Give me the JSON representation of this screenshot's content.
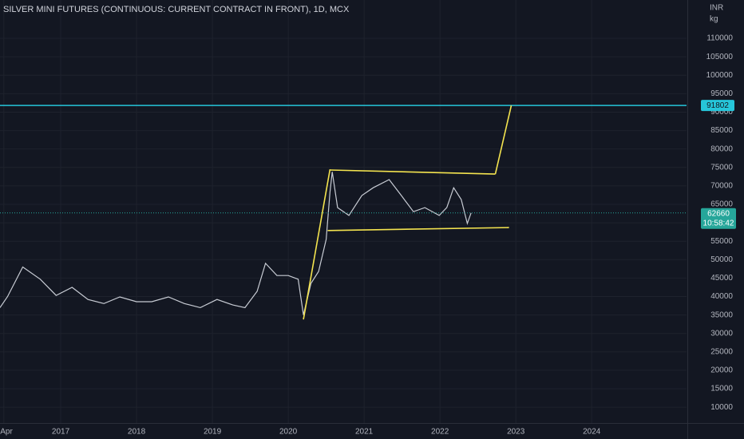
{
  "chart_data": {
    "type": "line",
    "title": "SILVER MINI FUTURES (CONTINUOUS: CURRENT CONTRACT IN FRONT), 1D, MCX",
    "currency": "INR",
    "unit": "kg",
    "x": [
      2016.2,
      2016.3,
      2016.5,
      2016.73,
      2016.94,
      2017.15,
      2017.36,
      2017.57,
      2017.78,
      2018.0,
      2018.2,
      2018.42,
      2018.63,
      2018.84,
      2019.06,
      2019.27,
      2019.43,
      2019.59,
      2019.7,
      2019.85,
      2020.0,
      2020.13,
      2020.2,
      2020.3,
      2020.4,
      2020.5,
      2020.55,
      2020.58,
      2020.65,
      2020.8,
      2020.97,
      2021.12,
      2021.33,
      2021.49,
      2021.65,
      2021.8,
      2021.99,
      2022.09,
      2022.18,
      2022.28,
      2022.36,
      2022.41
    ],
    "series": [
      {
        "name": "SILVER MINI",
        "color": "#c8ccd4",
        "values": [
          37000,
          40000,
          48000,
          44700,
          40300,
          42500,
          39200,
          38100,
          39900,
          38600,
          38600,
          39900,
          38100,
          37000,
          39200,
          37700,
          37000,
          41400,
          49000,
          45700,
          45700,
          44700,
          35000,
          43600,
          46800,
          55500,
          68400,
          73800,
          64100,
          62000,
          67400,
          69500,
          71700,
          67400,
          63000,
          64100,
          62000,
          64100,
          69500,
          66300,
          59800,
          62660
        ]
      }
    ],
    "xlim": [
      2016.2,
      2025.25
    ],
    "xticks": [
      {
        "value": 2016.25,
        "label": "Apr"
      },
      2017,
      2018,
      2019,
      2020,
      2021,
      2022,
      2023,
      2024
    ],
    "ylim": [
      5700,
      120400
    ],
    "yticks": [
      10000,
      15000,
      20000,
      25000,
      30000,
      35000,
      40000,
      45000,
      50000,
      55000,
      60000,
      65000,
      70000,
      75000,
      80000,
      85000,
      90000,
      95000,
      100000,
      105000,
      110000
    ],
    "grid": true,
    "hline": {
      "value": 91802,
      "color": "#26c6da"
    },
    "last_price": {
      "value": 62660,
      "countdown": "10:58:42",
      "color": "#26a69a"
    },
    "drawings": [
      {
        "color": "#f4e44f",
        "x": [
          2020.2,
          2020.55
        ],
        "y": [
          33800,
          74500
        ]
      },
      {
        "color": "#f4e44f",
        "x": [
          2020.55,
          2022.73
        ],
        "y": [
          74300,
          73200
        ]
      },
      {
        "color": "#f4e44f",
        "x": [
          2022.73,
          2022.94
        ],
        "y": [
          73200,
          91800
        ]
      },
      {
        "color": "#f4e44f",
        "x": [
          2020.52,
          2022.91
        ],
        "y": [
          57900,
          58700
        ]
      }
    ]
  }
}
